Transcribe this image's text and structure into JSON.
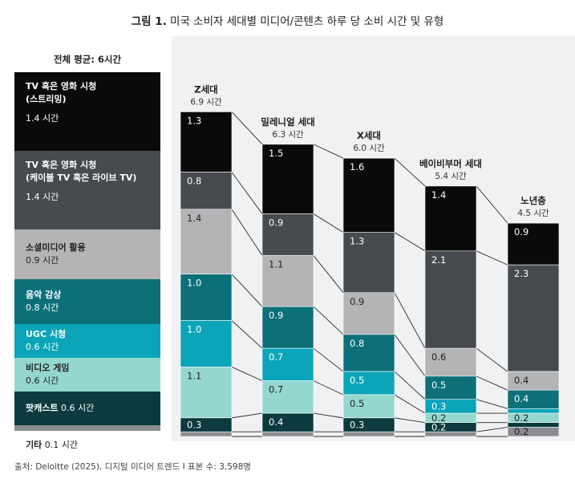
{
  "title": {
    "prefix": "그림 1.",
    "text": "미국 소비자 세대별 미디어/콘텐츠 하루 당 소비 시간 및 유형"
  },
  "legend_total": "전체 평균: 6시간",
  "legend": [
    {
      "name_lines": [
        "TV 혹은 영화 시청",
        "(스트리밍)"
      ],
      "value": "1.4 시간",
      "color": "#0a0a0a",
      "text_color": "#ffffff"
    },
    {
      "name_lines": [
        "TV 혹은 영화 시청",
        "(케이블 TV 혹은 라이브 TV)"
      ],
      "value": "1.4 시간",
      "color": "#474a4f",
      "text_color": "#ffffff"
    },
    {
      "name_lines": [
        "소셜미디어 활용"
      ],
      "value": "0.9 시간",
      "color": "#b2b4b5",
      "text_color": "#222222"
    },
    {
      "name_lines": [
        "음악 감상"
      ],
      "value": "0.8 시간",
      "color": "#0d7079",
      "text_color": "#ffffff"
    },
    {
      "name_lines": [
        "UGC 시청"
      ],
      "value": "0.6 시간",
      "color": "#0ca4b9",
      "text_color": "#ffffff"
    },
    {
      "name_lines": [
        "비디오 게임"
      ],
      "value": "0.6 시간",
      "color": "#94d7cf",
      "text_color": "#222222"
    },
    {
      "name_lines": [
        "팟캐스트"
      ],
      "value": "0.6 시간",
      "color": "#0c3a3e",
      "text_color": "#ffffff"
    }
  ],
  "legend_other": {
    "name": "기타",
    "value": "0.1 시간",
    "color": "#8a8c8f"
  },
  "source": "출처: Deloitte (2025), 디지털 미디어 트렌드 I 표본 수: 3,598명",
  "chart_data": {
    "type": "bar",
    "stacked": true,
    "title": "미국 소비자 세대별 미디어/콘텐츠 하루 당 소비 시간 및 유형",
    "categories": [
      "Z세대",
      "밀레니얼 세대",
      "X세대",
      "베이비부머 세대",
      "노년층"
    ],
    "totals": [
      6.9,
      6.3,
      6.0,
      5.4,
      4.5
    ],
    "total_labels": [
      "6.9 시간",
      "6.3 시간",
      "6.0 시간",
      "5.4 시간",
      "4.5 시간"
    ],
    "series": [
      {
        "name": "TV 혹은 영화 시청 (스트리밍)",
        "values": [
          1.3,
          1.5,
          1.6,
          1.4,
          0.9
        ]
      },
      {
        "name": "TV 혹은 영화 시청 (케이블 TV 혹은 라이브 TV)",
        "values": [
          0.8,
          0.9,
          1.3,
          2.1,
          2.3
        ]
      },
      {
        "name": "소셜미디어 활용",
        "values": [
          1.4,
          1.1,
          0.9,
          0.6,
          0.4
        ]
      },
      {
        "name": "음악 감상",
        "values": [
          1.0,
          0.9,
          0.8,
          0.5,
          0.4
        ]
      },
      {
        "name": "UGC 시청",
        "values": [
          1.0,
          0.7,
          0.5,
          0.3,
          0.1
        ]
      },
      {
        "name": "비디오 게임",
        "values": [
          1.1,
          0.7,
          0.5,
          0.2,
          0.2
        ]
      },
      {
        "name": "팟캐스트",
        "values": [
          0.3,
          0.4,
          0.3,
          0.2,
          0.1
        ]
      },
      {
        "name": "기타",
        "values": [
          0.1,
          0.1,
          0.1,
          0.1,
          0.2
        ]
      }
    ],
    "data_labels": [
      [
        "1.3",
        "1.5",
        "1.6",
        "1.4",
        "0.9"
      ],
      [
        "0.8",
        "0.9",
        "1.3",
        "2.1",
        "2.3"
      ],
      [
        "1.4",
        "1.1",
        "0.9",
        "0.6",
        "0.4"
      ],
      [
        "1.0",
        "0.9",
        "0.8",
        "0.5",
        "0.4"
      ],
      [
        "1.0",
        "0.7",
        "0.5",
        "0.3",
        ""
      ],
      [
        "1.1",
        "0.7",
        "0.5",
        "0.2",
        "0.2"
      ],
      [
        "0.3",
        "0.4",
        "0.3",
        "0.2",
        ""
      ],
      [
        "",
        "",
        "",
        "",
        "0.2"
      ]
    ],
    "colors": [
      "#0a0a0a",
      "#474a4f",
      "#b2b4b5",
      "#0d7079",
      "#0ca4b9",
      "#94d7cf",
      "#0c3a3e",
      "#8a8c8f"
    ],
    "label_colors": [
      "#ffffff",
      "#ffffff",
      "#222222",
      "#ffffff",
      "#ffffff",
      "#222222",
      "#ffffff",
      "#222222"
    ],
    "unit": "시간"
  }
}
